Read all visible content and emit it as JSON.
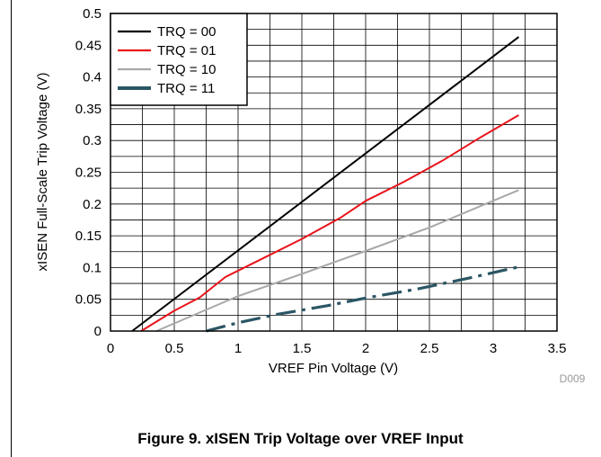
{
  "chart_data": {
    "type": "line",
    "title": "",
    "xlabel": "VREF Pin Voltage (V)",
    "ylabel": "xISEN Full-Scale Trip Voltage (V)",
    "xlim": [
      0,
      3.5
    ],
    "ylim": [
      0,
      0.5
    ],
    "xticks": [
      0,
      0.5,
      1,
      1.5,
      2,
      2.5,
      3,
      3.5
    ],
    "xtick_labels": [
      "0",
      "0.5",
      "1",
      "1.5",
      "2",
      "2.5",
      "3",
      "3.5"
    ],
    "yticks": [
      0,
      0.05,
      0.1,
      0.15,
      0.2,
      0.25,
      0.3,
      0.35,
      0.4,
      0.45,
      0.5
    ],
    "ytick_labels": [
      "0",
      "0.05",
      "0.1",
      "0.15",
      "0.2",
      "0.25",
      "0.3",
      "0.35",
      "0.4",
      "0.45",
      "0.5"
    ],
    "x_minor_step": 0.25,
    "y_minor_step": 0.025,
    "grid": true,
    "legend_position": "top-left",
    "series": [
      {
        "name": "TRQ = 00",
        "color": "#000000",
        "style": "solid",
        "x": [
          0.17,
          3.2
        ],
        "y": [
          0.0,
          0.463
        ]
      },
      {
        "name": "TRQ = 01",
        "color": "#e8141b",
        "style": "solid",
        "x": [
          0.24,
          0.5,
          0.7,
          0.9,
          1.2,
          1.5,
          1.8,
          2.0,
          2.3,
          2.6,
          2.9,
          3.2
        ],
        "y": [
          0.0,
          0.032,
          0.053,
          0.085,
          0.115,
          0.145,
          0.178,
          0.205,
          0.235,
          0.268,
          0.305,
          0.34
        ]
      },
      {
        "name": "TRQ = 10",
        "color": "#a8a8a8",
        "style": "solid",
        "x": [
          0.36,
          1.0,
          1.5,
          2.0,
          2.5,
          3.2
        ],
        "y": [
          0.0,
          0.055,
          0.09,
          0.126,
          0.163,
          0.222
        ]
      },
      {
        "name": "TRQ = 11",
        "color": "#2b5664",
        "style": "dashdot",
        "x": [
          0.75,
          1.0,
          1.3,
          1.7,
          2.0,
          2.4,
          2.8,
          3.2
        ],
        "y": [
          0.0,
          0.013,
          0.026,
          0.04,
          0.052,
          0.066,
          0.083,
          0.101
        ]
      }
    ],
    "annotation": "D009"
  },
  "caption": "Figure 9. xISEN Trip Voltage over VREF Input"
}
